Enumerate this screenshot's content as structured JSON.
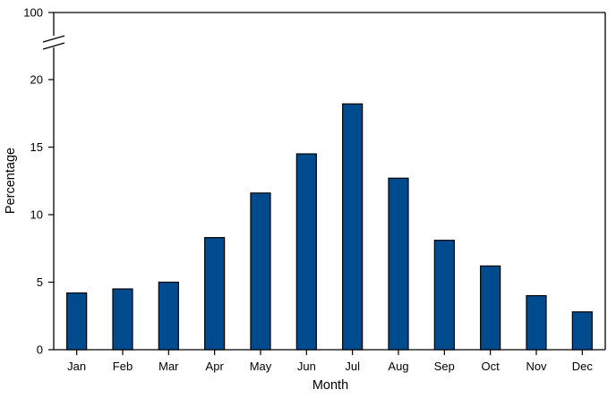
{
  "chart_data": {
    "type": "bar",
    "categories": [
      "Jan",
      "Feb",
      "Mar",
      "Apr",
      "May",
      "Jun",
      "Jul",
      "Aug",
      "Sep",
      "Oct",
      "Nov",
      "Dec"
    ],
    "values": [
      4.2,
      4.5,
      5.0,
      8.3,
      11.6,
      14.5,
      18.2,
      12.7,
      8.1,
      6.2,
      4.0,
      2.8
    ],
    "xlabel": "Month",
    "ylabel": "Percentage",
    "ylim": [
      0,
      100
    ],
    "yticks": [
      0,
      5,
      10,
      15,
      20,
      100
    ],
    "axis_break": "between 20 and 100",
    "grid": false,
    "bar_color": "#004b8d"
  }
}
